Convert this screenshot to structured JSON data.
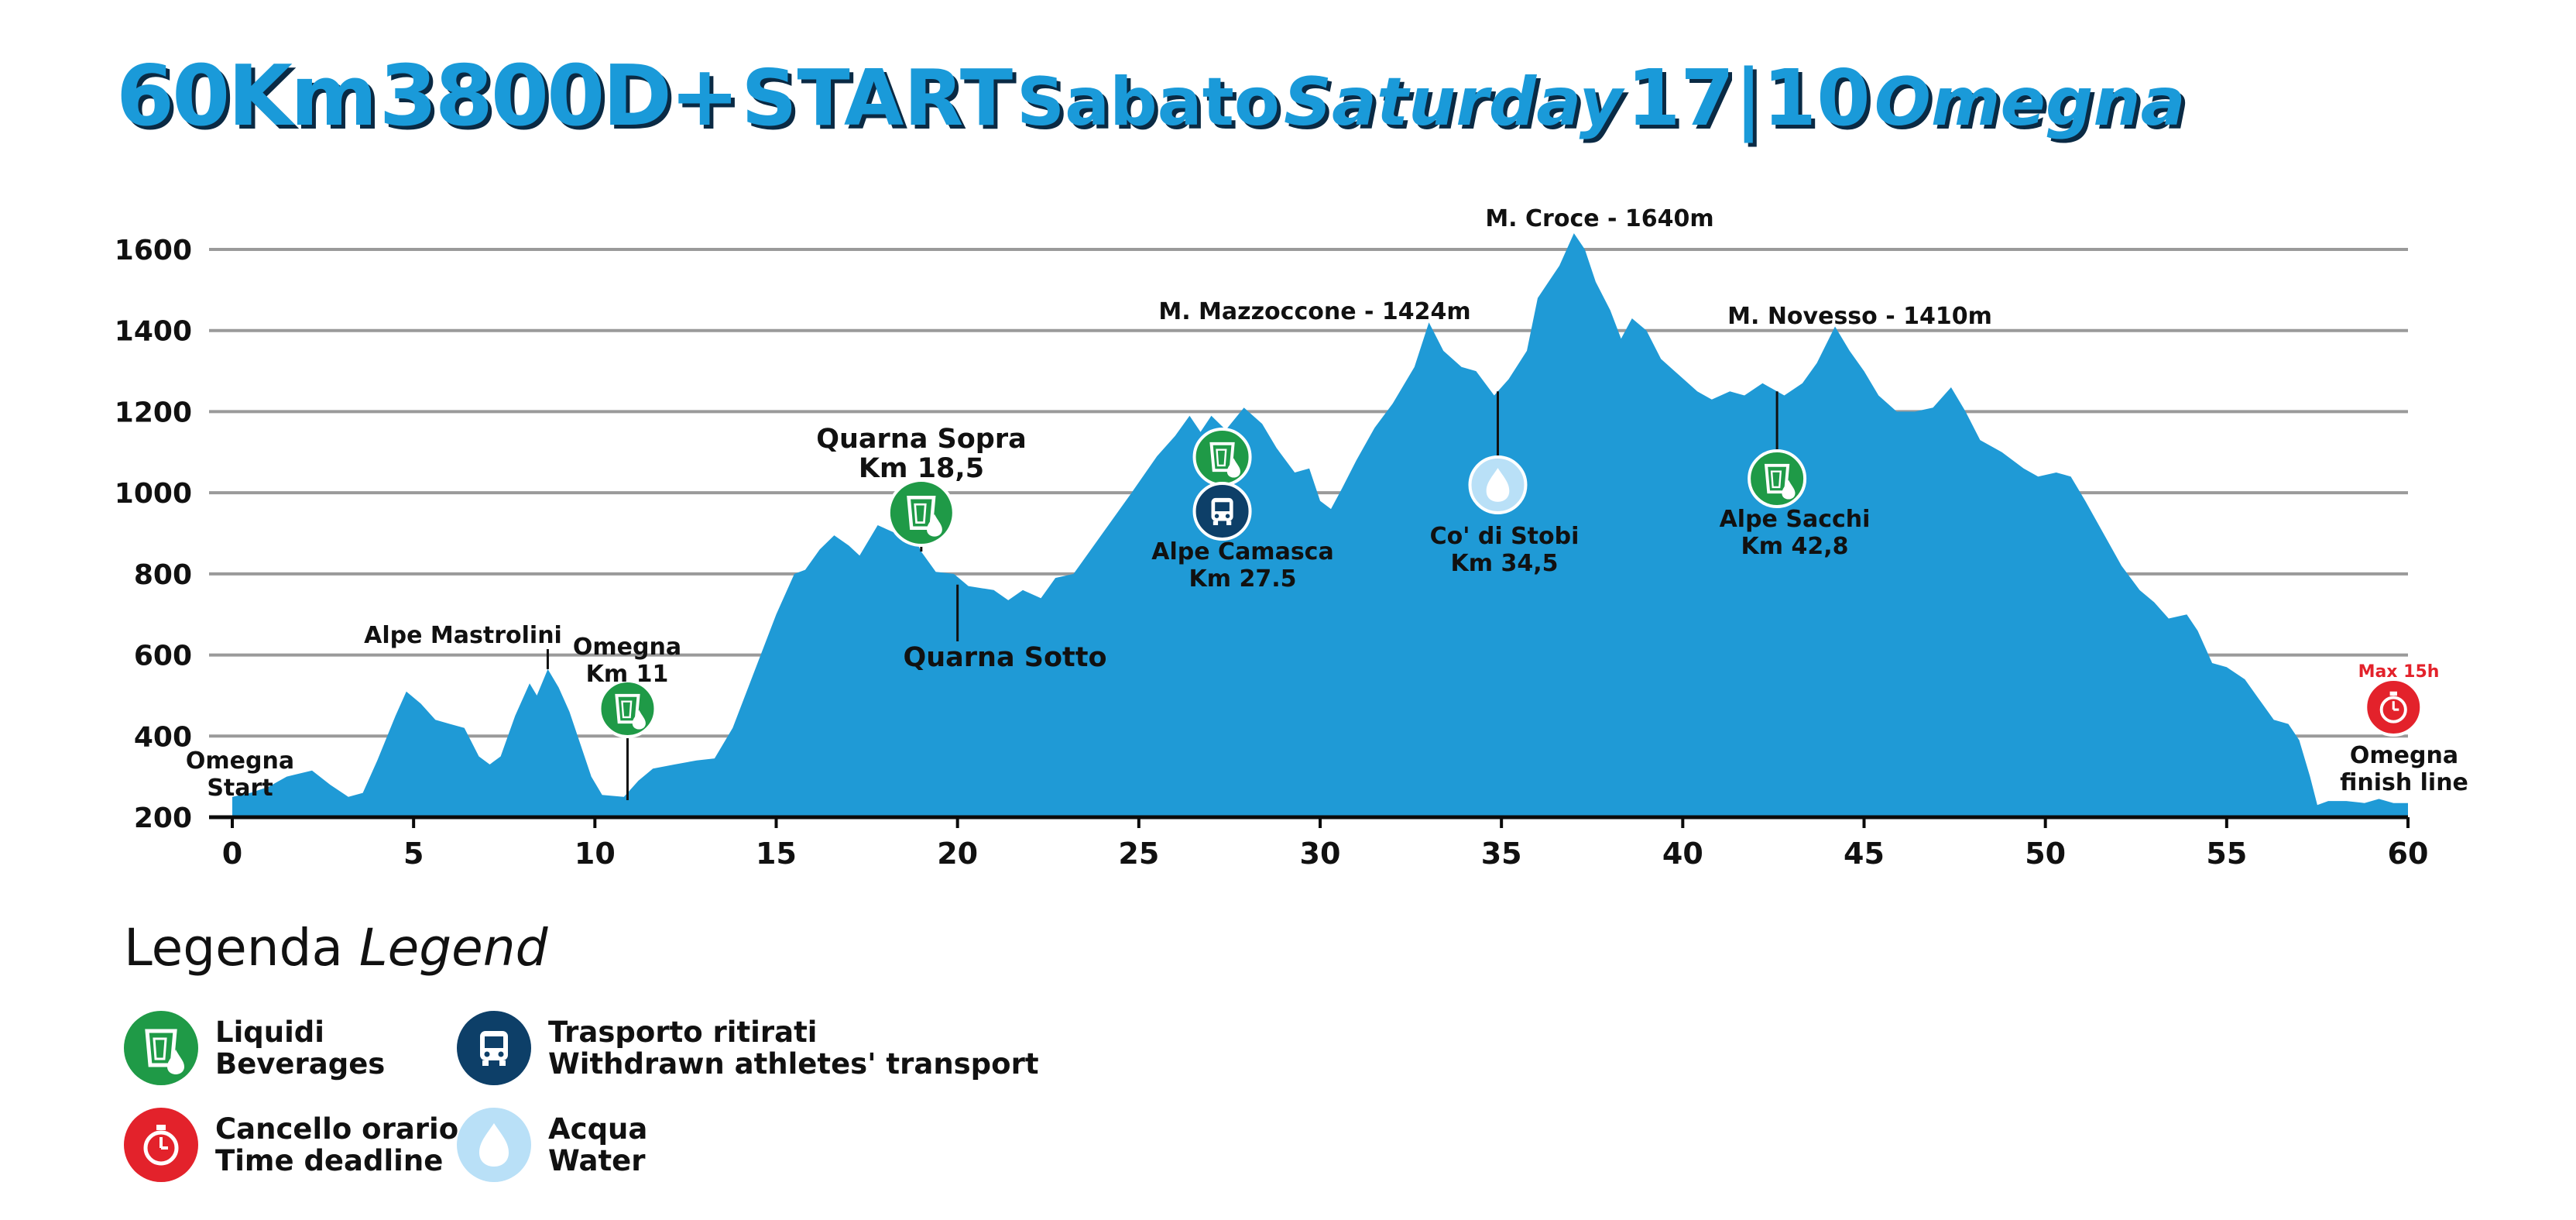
{
  "title": {
    "distance": "60Km",
    "elevation": "3800D+",
    "start": "START",
    "day_it": "Sabato",
    "day_en": "Saturday",
    "date": "17|10",
    "place": "Omegna"
  },
  "legend": {
    "title_it": "Legenda",
    "title_en": "Legend",
    "items": [
      {
        "key": "beverages",
        "icon": "beverages-icon",
        "color": "#1f9a47",
        "line1": "Liquidi",
        "line2": "Beverages"
      },
      {
        "key": "time",
        "icon": "stopwatch-icon",
        "color": "#e3222b",
        "line1": "Cancello orario",
        "line2": "Time deadline"
      },
      {
        "key": "transport",
        "icon": "bus-icon",
        "color": "#0d3f68",
        "line1": "Trasporto ritirati",
        "line2": "Withdrawn athletes' transport"
      },
      {
        "key": "water",
        "icon": "water-drop-icon",
        "color": "#b9e0f7",
        "line1": "Acqua",
        "line2": "Water"
      }
    ]
  },
  "chart_data": {
    "type": "area",
    "xlim": [
      0,
      60
    ],
    "ylim": [
      200,
      1600
    ],
    "x_ticks": [
      0,
      5,
      10,
      15,
      20,
      25,
      30,
      35,
      40,
      45,
      50,
      55,
      60
    ],
    "y_ticks": [
      200,
      400,
      600,
      800,
      1000,
      1200,
      1400,
      1600
    ],
    "grid": true,
    "fill_color": "#1f9ad6",
    "profile": [
      [
        0,
        250
      ],
      [
        0.5,
        260
      ],
      [
        1.0,
        275
      ],
      [
        1.5,
        300
      ],
      [
        2.2,
        315
      ],
      [
        2.7,
        280
      ],
      [
        3.2,
        250
      ],
      [
        3.6,
        260
      ],
      [
        4.0,
        340
      ],
      [
        4.5,
        450
      ],
      [
        4.8,
        510
      ],
      [
        5.2,
        480
      ],
      [
        5.6,
        440
      ],
      [
        6.0,
        430
      ],
      [
        6.4,
        420
      ],
      [
        6.8,
        350
      ],
      [
        7.1,
        330
      ],
      [
        7.4,
        350
      ],
      [
        7.8,
        450
      ],
      [
        8.2,
        530
      ],
      [
        8.4,
        500
      ],
      [
        8.7,
        565
      ],
      [
        9.0,
        520
      ],
      [
        9.3,
        460
      ],
      [
        9.6,
        380
      ],
      [
        9.9,
        300
      ],
      [
        10.2,
        255
      ],
      [
        10.8,
        250
      ],
      [
        11.2,
        290
      ],
      [
        11.6,
        320
      ],
      [
        12.2,
        330
      ],
      [
        12.8,
        340
      ],
      [
        13.3,
        345
      ],
      [
        13.8,
        420
      ],
      [
        14.4,
        560
      ],
      [
        15.0,
        700
      ],
      [
        15.5,
        800
      ],
      [
        15.8,
        810
      ],
      [
        16.2,
        860
      ],
      [
        16.6,
        895
      ],
      [
        17.0,
        870
      ],
      [
        17.3,
        845
      ],
      [
        17.8,
        920
      ],
      [
        18.3,
        900
      ],
      [
        18.7,
        910
      ],
      [
        19.0,
        855
      ],
      [
        19.4,
        805
      ],
      [
        19.9,
        800
      ],
      [
        20.3,
        770
      ],
      [
        21.0,
        760
      ],
      [
        21.4,
        735
      ],
      [
        21.8,
        760
      ],
      [
        22.3,
        740
      ],
      [
        22.7,
        790
      ],
      [
        23.2,
        800
      ],
      [
        24.0,
        900
      ],
      [
        24.8,
        1000
      ],
      [
        25.5,
        1090
      ],
      [
        26.0,
        1140
      ],
      [
        26.4,
        1190
      ],
      [
        26.7,
        1150
      ],
      [
        27.0,
        1190
      ],
      [
        27.4,
        1155
      ],
      [
        27.9,
        1210
      ],
      [
        28.4,
        1170
      ],
      [
        28.8,
        1110
      ],
      [
        29.3,
        1050
      ],
      [
        29.7,
        1060
      ],
      [
        30.0,
        980
      ],
      [
        30.3,
        960
      ],
      [
        30.6,
        1010
      ],
      [
        31.0,
        1080
      ],
      [
        31.5,
        1160
      ],
      [
        32.0,
        1220
      ],
      [
        32.6,
        1310
      ],
      [
        33.0,
        1420
      ],
      [
        33.4,
        1350
      ],
      [
        33.9,
        1310
      ],
      [
        34.3,
        1300
      ],
      [
        34.8,
        1240
      ],
      [
        35.2,
        1280
      ],
      [
        35.7,
        1350
      ],
      [
        36.0,
        1480
      ],
      [
        36.3,
        1520
      ],
      [
        36.6,
        1560
      ],
      [
        37.0,
        1640
      ],
      [
        37.3,
        1600
      ],
      [
        37.6,
        1520
      ],
      [
        38.0,
        1450
      ],
      [
        38.3,
        1380
      ],
      [
        38.6,
        1430
      ],
      [
        39.0,
        1400
      ],
      [
        39.4,
        1330
      ],
      [
        39.9,
        1290
      ],
      [
        40.4,
        1250
      ],
      [
        40.8,
        1230
      ],
      [
        41.3,
        1250
      ],
      [
        41.7,
        1240
      ],
      [
        42.2,
        1270
      ],
      [
        42.8,
        1240
      ],
      [
        43.3,
        1270
      ],
      [
        43.7,
        1320
      ],
      [
        44.2,
        1410
      ],
      [
        44.6,
        1350
      ],
      [
        45.0,
        1300
      ],
      [
        45.4,
        1240
      ],
      [
        45.9,
        1200
      ],
      [
        46.4,
        1200
      ],
      [
        46.9,
        1210
      ],
      [
        47.4,
        1260
      ],
      [
        47.8,
        1200
      ],
      [
        48.2,
        1130
      ],
      [
        48.8,
        1100
      ],
      [
        49.4,
        1060
      ],
      [
        49.8,
        1040
      ],
      [
        50.3,
        1050
      ],
      [
        50.7,
        1040
      ],
      [
        51.1,
        980
      ],
      [
        51.6,
        900
      ],
      [
        52.1,
        820
      ],
      [
        52.6,
        760
      ],
      [
        53.0,
        730
      ],
      [
        53.4,
        690
      ],
      [
        53.9,
        700
      ],
      [
        54.2,
        660
      ],
      [
        54.6,
        580
      ],
      [
        55.0,
        570
      ],
      [
        55.5,
        540
      ],
      [
        55.9,
        490
      ],
      [
        56.3,
        440
      ],
      [
        56.7,
        430
      ],
      [
        57.0,
        390
      ],
      [
        57.3,
        300
      ],
      [
        57.5,
        230
      ],
      [
        57.8,
        240
      ],
      [
        58.3,
        240
      ],
      [
        58.8,
        235
      ],
      [
        59.2,
        245
      ],
      [
        59.6,
        235
      ],
      [
        60.0,
        235
      ]
    ],
    "labels": {
      "start_1": "Omegna",
      "start_2": "Start",
      "mastrolini": "Alpe Mastrolini",
      "omegna11_1": "Omegna",
      "omegna11_2": "Km 11",
      "quarna_sopra_1": "Quarna Sopra",
      "quarna_sopra_2": "Km 18,5",
      "quarna_sotto": "Quarna Sotto",
      "camasca_1": "Alpe Camasca",
      "camasca_2": "Km 27.5",
      "mazzoccone": "M. Mazzoccone - 1424m",
      "croce": "M. Croce - 1640m",
      "stobi_1": "Co' di Stobi",
      "stobi_2": "Km 34,5",
      "novesso": "M. Novesso - 1410m",
      "sacchi_1": "Alpe Sacchi",
      "sacchi_2": "Km 42,8",
      "finish_1": "Omegna",
      "finish_2": "finish line",
      "max": "Max 15h"
    }
  }
}
